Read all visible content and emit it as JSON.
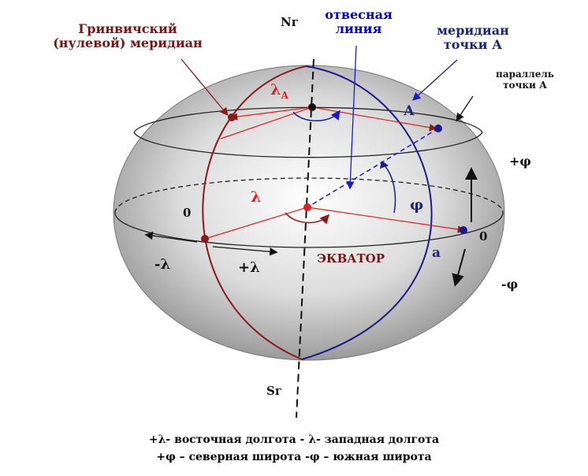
{
  "labels": {
    "greenwich_line1": "Гринвичский",
    "greenwich_line2": "(нулевой) меридиан",
    "north_pole": "Nг",
    "plumb_line1": "отвесная",
    "plumb_line2": "линия",
    "meridian_line1": "меридиан",
    "meridian_line2": "точки  А",
    "parallel_line1": "параллель",
    "parallel_line2": "точки А",
    "lambda_a": "λ",
    "lambda_a_sub": "А",
    "point_a": "А",
    "plus_phi": "+φ",
    "lambda": "λ",
    "phi": "φ",
    "zero_left": "0",
    "zero_right": "0",
    "minus_lambda": "-λ",
    "plus_lambda": "+λ",
    "equator": "ЭКВАТОР",
    "point_a_small": "а",
    "minus_phi": "-φ",
    "south_pole": "Sг"
  },
  "legend": {
    "line1": "+λ- восточная долгота     - λ- западная долгота",
    "line2": "+φ – северная широта     -φ – южная широта"
  },
  "colors": {
    "greenwich_meridian": "#8b1a1a",
    "meridian_a": "#1a1a8c",
    "construction_lines": "#e02020",
    "plumb_line": "#1a1acc",
    "axis": "#111111"
  }
}
